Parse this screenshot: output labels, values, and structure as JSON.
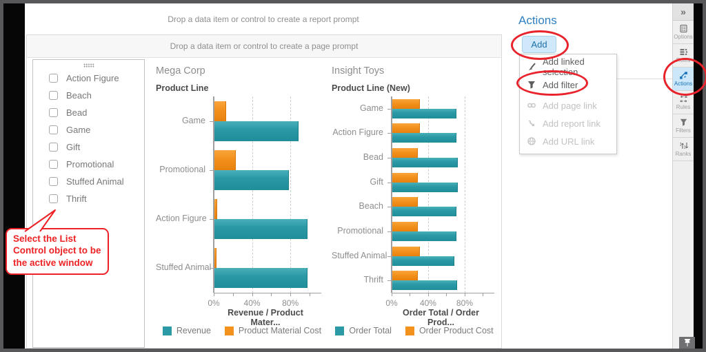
{
  "prompts": {
    "report": "Drop a data item or control to create a report prompt",
    "page": "Drop a data item or control to create a page prompt"
  },
  "list_control": {
    "items": [
      "Action Figure",
      "Beach",
      "Bead",
      "Game",
      "Gift",
      "Promotional",
      "Stuffed Animal",
      "Thrift"
    ],
    "checked": [
      false,
      false,
      false,
      false,
      false,
      false,
      false,
      false
    ]
  },
  "callout": {
    "lines": [
      "Select the List",
      "Control object to be",
      "the active window"
    ]
  },
  "chart_data": [
    {
      "type": "bar",
      "orientation": "horizontal",
      "title": "Mega Corp",
      "ylabel": "Product Line",
      "xlabel": "Revenue / Product Mater...",
      "categories": [
        "Game",
        "Promotional",
        "Action Figure",
        "Stuffed Animal"
      ],
      "series": [
        {
          "name": "Revenue",
          "key": "teal",
          "color": "#2B9AA6",
          "values": [
            88,
            78,
            97,
            97
          ]
        },
        {
          "name": "Product Material Cost",
          "key": "orange",
          "color": "#F3911D",
          "values": [
            12,
            22,
            3,
            2
          ]
        }
      ],
      "x_ticks": [
        "0%",
        "40%",
        "80%"
      ],
      "x_tick_values": [
        0,
        40,
        80
      ],
      "gridlines": [
        40,
        80
      ],
      "xlim": [
        0,
        100
      ],
      "unit": "%",
      "legend_position": "bottom"
    },
    {
      "type": "bar",
      "orientation": "horizontal",
      "title": "Insight Toys",
      "ylabel": "Product Line (New)",
      "xlabel": "Order Total / Order Prod...",
      "categories": [
        "Game",
        "Action Figure",
        "Bead",
        "Gift",
        "Beach",
        "Promotional",
        "Stuffed Animal",
        "Thrift"
      ],
      "series": [
        {
          "name": "Order Total",
          "key": "teal",
          "color": "#2B9AA6",
          "values": [
            70,
            70,
            72,
            72,
            70,
            70,
            68,
            71
          ]
        },
        {
          "name": "Order Product Cost",
          "key": "orange",
          "color": "#F3911D",
          "values": [
            30,
            30,
            28,
            28,
            28,
            28,
            30,
            28
          ]
        }
      ],
      "x_ticks": [
        "0%",
        "40%",
        "80%"
      ],
      "x_tick_values": [
        0,
        40,
        80
      ],
      "gridlines": [
        40,
        80
      ],
      "xlim": [
        0,
        100
      ],
      "unit": "%",
      "legend_position": "bottom"
    }
  ],
  "actions_panel": {
    "title": "Actions",
    "add_button": "Add",
    "menu": [
      {
        "label": "Add linked selection",
        "icon": "brush-icon",
        "enabled": true
      },
      {
        "label": "Add filter",
        "icon": "filter-icon",
        "enabled": true,
        "highlighted": true
      },
      {
        "label": "Add page link",
        "icon": "chain-link-icon",
        "enabled": false
      },
      {
        "label": "Add report link",
        "icon": "report-link-icon",
        "enabled": false
      },
      {
        "label": "Add URL link",
        "icon": "url-link-icon",
        "enabled": false
      }
    ]
  },
  "toolbar": {
    "collapse_label": "»",
    "tabs": [
      {
        "label": "Options",
        "active": false
      },
      {
        "label": "Roles",
        "active": false
      },
      {
        "label": "Actions",
        "active": true
      },
      {
        "label": "Rules",
        "active": false
      },
      {
        "label": "Filters",
        "active": false
      },
      {
        "label": "Ranks",
        "active": false
      }
    ]
  },
  "colors": {
    "teal": "#2B9AA6",
    "orange": "#F3911D",
    "highlight_red": "#E8232B",
    "accent_blue": "#2E80C2",
    "active_tab_bg": "#CBE7F9"
  }
}
